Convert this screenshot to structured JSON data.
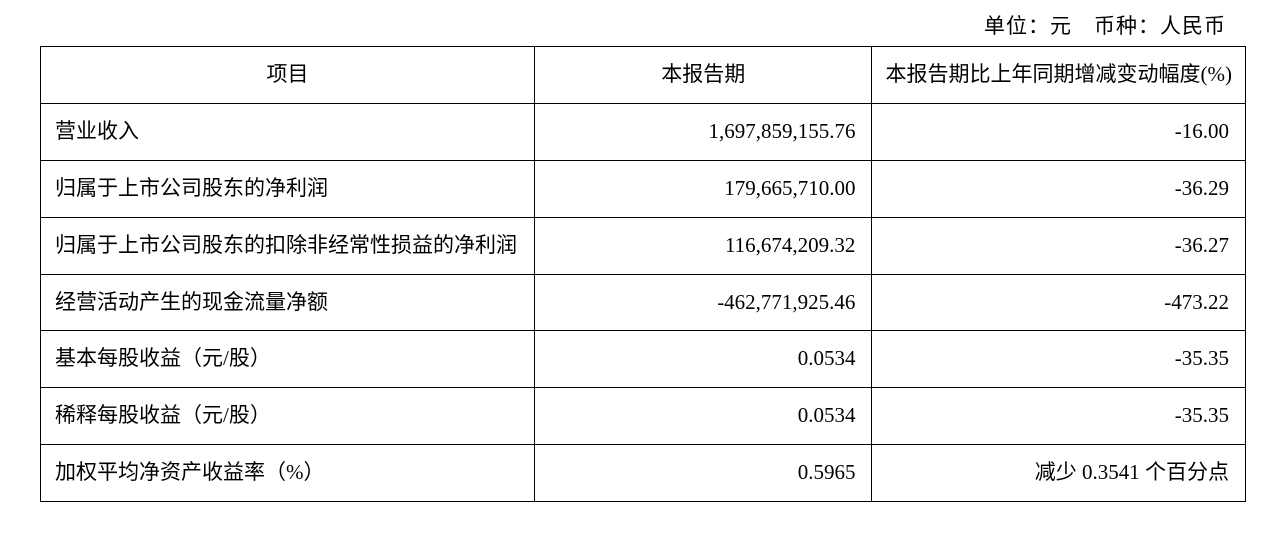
{
  "unit_line": "单位：元　币种：人民币",
  "table": {
    "columns": [
      "项目",
      "本报告期",
      "本报告期比上年同期增减变动幅度(%)"
    ],
    "rows": [
      {
        "label": "营业收入",
        "value": "1,697,859,155.76",
        "change": "-16.00"
      },
      {
        "label": "归属于上市公司股东的净利润",
        "value": "179,665,710.00",
        "change": "-36.29"
      },
      {
        "label": "归属于上市公司股东的扣除非经常性损益的净利润",
        "value": "116,674,209.32",
        "change": "-36.27"
      },
      {
        "label": "经营活动产生的现金流量净额",
        "value": "-462,771,925.46",
        "change": "-473.22"
      },
      {
        "label": "基本每股收益（元/股）",
        "value": "0.0534",
        "change": "-35.35"
      },
      {
        "label": "稀释每股收益（元/股）",
        "value": "0.0534",
        "change": "-35.35"
      },
      {
        "label": "加权平均净资产收益率（%）",
        "value": "0.5965",
        "change": "减少 0.3541 个百分点"
      }
    ],
    "border_color": "#000000",
    "background_color": "#ffffff",
    "text_color": "#000000",
    "font_size_pt": 16,
    "col_widths_pct": [
      41,
      28,
      31
    ]
  }
}
